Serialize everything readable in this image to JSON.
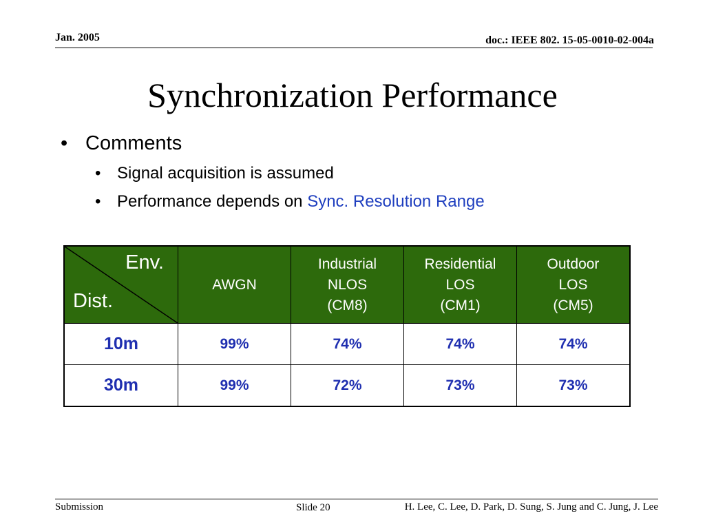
{
  "header": {
    "date": "Jan. 2005",
    "doc_id": "doc.: IEEE 802. 15-05-0010-02-004a"
  },
  "slide": {
    "title": "Synchronization Performance",
    "bullets": {
      "level1": "Comments",
      "level2": [
        {
          "text": "Signal acquisition is assumed",
          "highlight": ""
        },
        {
          "text": "Performance depends on ",
          "highlight": "Sync. Resolution Range"
        }
      ],
      "bullet_char": "•"
    }
  },
  "table": {
    "corner": {
      "env": "Env.",
      "dist": "Dist."
    },
    "columns": [
      {
        "lines": [
          "AWGN"
        ]
      },
      {
        "lines": [
          "Industrial",
          "NLOS",
          "(CM8)"
        ]
      },
      {
        "lines": [
          "Residential",
          "LOS",
          "(CM1)"
        ]
      },
      {
        "lines": [
          "Outdoor",
          "LOS",
          "(CM5)"
        ]
      }
    ],
    "rows": [
      {
        "dist": "10m",
        "values": [
          "99%",
          "74%",
          "74%",
          "74%"
        ]
      },
      {
        "dist": "30m",
        "values": [
          "99%",
          "72%",
          "73%",
          "73%"
        ]
      }
    ],
    "colors": {
      "header_bg": "#2d6a0c",
      "value_text": "#1f2fb0"
    }
  },
  "footer": {
    "left": "Submission",
    "slide_number": "Slide 20",
    "authors": "H. Lee, C. Lee, D. Park, D. Sung, S. Jung and C. Jung, J. Lee"
  }
}
